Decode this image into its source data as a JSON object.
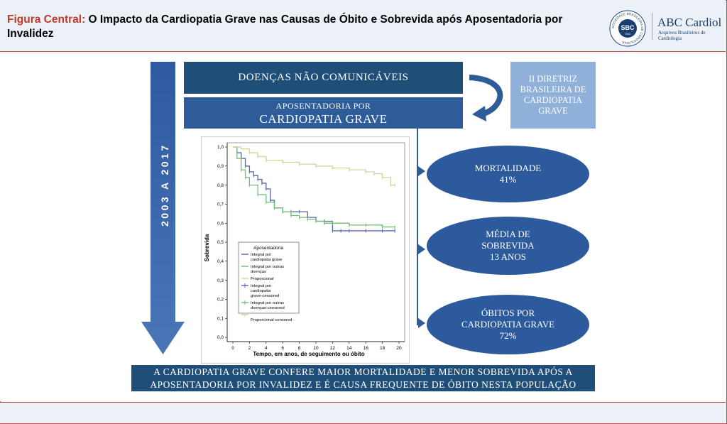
{
  "header": {
    "title_lead": "Figura Central:",
    "title_rest": " O Impacto da Cardiopatia Grave nas Causas de Óbito e Sobrevida após Aposentadoria por Invalidez",
    "logo_seal_text": "SBC",
    "logo_seal_year": "1943",
    "logo_ring_text": "SOCIEDADE BRASILEIRA DE CARDIOLOGIA",
    "logo_brand": "ABC Cardiol",
    "logo_subtitle": "Arquivos Brasileiros de Cardiologia"
  },
  "diagram": {
    "period": "2003 A 2017",
    "dnc": "DOENÇAS NÃO COMUNICÁVEIS",
    "aposentadoria_line1": "APOSENTADORIA POR",
    "aposentadoria_line2": "CARDIOPATIA GRAVE",
    "diretriz": "II DIRETRIZ BRASILEIRA DE CARDIOPATIA GRAVE",
    "ellipses": [
      {
        "line1": "MORTALIDADE",
        "line2": "41%",
        "line3": ""
      },
      {
        "line1": "MÉDIA DE",
        "line2": "SOBREVIDA",
        "line3": "13 ANOS"
      },
      {
        "line1": "ÓBITOS POR",
        "line2": "CARDIOPATIA GRAVE",
        "line3": "72%"
      }
    ],
    "conclusion_line1": "A CARDIOPATIA GRAVE CONFERE MAIOR MORTALIDADE E MENOR SOBREVIDA APÓS A",
    "conclusion_line2": "APOSENTADORIA POR INVALIDEZ E É CAUSA FREQUENTE DE ÓBITO NESTA POPULAÇÃO"
  },
  "chart_data": {
    "type": "line",
    "xlabel": "Tempo, em anos, de seguimento ou óbito",
    "ylabel": "Sobrevida",
    "xlim": [
      0,
      20
    ],
    "ylim": [
      0,
      1
    ],
    "x_ticks": [
      "0",
      "2",
      "4",
      "6",
      "8",
      "10",
      "12",
      "14",
      "16",
      "18",
      "20"
    ],
    "y_ticks": [
      "0,0",
      "0,1",
      "0,2",
      "0,3",
      "0,4",
      "0,5",
      "0,6",
      "0,7",
      "0,8",
      "0,9",
      "1,0"
    ],
    "grid": false,
    "legend_title": "Aposentadoria",
    "legend_entries": [
      "Integral por cardiopatia grave",
      "Integral por outras doenças",
      "Proporcional",
      "Integral por cardiopatia grave-censored",
      "Integral por outras doenças-censored",
      "Proporcional-censored"
    ],
    "series": [
      {
        "name": "Integral por cardiopatia grave",
        "color": "#5866ad",
        "x": [
          0,
          0.5,
          1,
          1.5,
          2,
          2.5,
          3,
          3.5,
          4,
          4.5,
          5,
          6,
          7,
          8,
          9,
          10,
          11,
          12,
          13,
          14,
          16,
          18,
          19.5
        ],
        "y": [
          1.0,
          0.97,
          0.94,
          0.9,
          0.87,
          0.85,
          0.83,
          0.81,
          0.78,
          0.72,
          0.68,
          0.66,
          0.66,
          0.66,
          0.63,
          0.61,
          0.61,
          0.56,
          0.56,
          0.56,
          0.56,
          0.56,
          0.56
        ]
      },
      {
        "name": "Integral por outras doenças",
        "color": "#6fbf73",
        "x": [
          0,
          0.5,
          1,
          1.5,
          2,
          3,
          4,
          5,
          6,
          7,
          8,
          9,
          10,
          11,
          12,
          14,
          16,
          18,
          19.5
        ],
        "y": [
          1.0,
          0.94,
          0.88,
          0.84,
          0.8,
          0.75,
          0.71,
          0.68,
          0.66,
          0.64,
          0.63,
          0.62,
          0.61,
          0.6,
          0.6,
          0.59,
          0.59,
          0.58,
          0.58
        ]
      },
      {
        "name": "Proporcional",
        "color": "#cfd79a",
        "x": [
          0,
          1,
          2,
          3,
          4,
          6,
          8,
          10,
          12,
          14,
          16,
          17,
          18,
          19,
          19.5
        ],
        "y": [
          1.0,
          0.99,
          0.97,
          0.95,
          0.93,
          0.92,
          0.91,
          0.9,
          0.89,
          0.88,
          0.87,
          0.86,
          0.84,
          0.8,
          0.8
        ]
      }
    ]
  }
}
